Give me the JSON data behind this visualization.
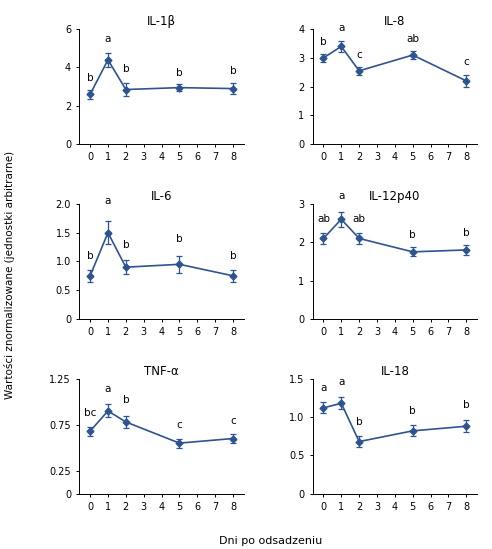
{
  "subplots": [
    {
      "title": "IL-1β",
      "x": [
        0,
        1,
        2,
        5,
        8
      ],
      "y": [
        2.6,
        4.4,
        2.85,
        2.95,
        2.9
      ],
      "yerr": [
        0.25,
        0.35,
        0.35,
        0.2,
        0.3
      ],
      "labels": [
        "b",
        "a",
        "b",
        "b",
        "b"
      ],
      "label_offsets": [
        0.35,
        0.45,
        0.45,
        0.28,
        0.38
      ],
      "ylim": [
        0,
        6
      ],
      "yticks": [
        0,
        2,
        4,
        6
      ],
      "yticklabels": [
        "0",
        "2",
        "4",
        "6"
      ]
    },
    {
      "title": "IL-8",
      "x": [
        0,
        1,
        2,
        5,
        8
      ],
      "y": [
        3.0,
        3.4,
        2.55,
        3.1,
        2.2
      ],
      "yerr": [
        0.15,
        0.2,
        0.15,
        0.15,
        0.2
      ],
      "labels": [
        "b",
        "a",
        "c",
        "ab",
        "c"
      ],
      "label_offsets": [
        0.22,
        0.28,
        0.22,
        0.22,
        0.28
      ],
      "ylim": [
        0,
        4
      ],
      "yticks": [
        0,
        1,
        2,
        3,
        4
      ],
      "yticklabels": [
        "0",
        "1",
        "2",
        "3",
        "4"
      ]
    },
    {
      "title": "IL-6",
      "x": [
        0,
        1,
        2,
        5,
        8
      ],
      "y": [
        0.75,
        1.5,
        0.9,
        0.95,
        0.75
      ],
      "yerr": [
        0.1,
        0.2,
        0.12,
        0.15,
        0.1
      ],
      "labels": [
        "b",
        "a",
        "b",
        "b",
        "b"
      ],
      "label_offsets": [
        0.16,
        0.26,
        0.18,
        0.2,
        0.16
      ],
      "ylim": [
        0,
        2.0
      ],
      "yticks": [
        0,
        0.5,
        1.0,
        1.5,
        2.0
      ],
      "yticklabels": [
        "0",
        "0.5",
        "1.0",
        "1.5",
        "2.0"
      ]
    },
    {
      "title": "IL-12p40",
      "x": [
        0,
        1,
        2,
        5,
        8
      ],
      "y": [
        2.1,
        2.6,
        2.1,
        1.75,
        1.8
      ],
      "yerr": [
        0.15,
        0.2,
        0.15,
        0.12,
        0.12
      ],
      "labels": [
        "ab",
        "a",
        "ab",
        "b",
        "b"
      ],
      "label_offsets": [
        0.22,
        0.28,
        0.22,
        0.18,
        0.18
      ],
      "ylim": [
        0,
        3
      ],
      "yticks": [
        0,
        1,
        2,
        3
      ],
      "yticklabels": [
        "0",
        "1",
        "2",
        "3"
      ]
    },
    {
      "title": "TNF-α",
      "x": [
        0,
        1,
        2,
        5,
        8
      ],
      "y": [
        0.68,
        0.9,
        0.78,
        0.55,
        0.6
      ],
      "yerr": [
        0.05,
        0.07,
        0.07,
        0.05,
        0.05
      ],
      "labels": [
        "bc",
        "a",
        "b",
        "c",
        "c"
      ],
      "label_offsets": [
        0.09,
        0.11,
        0.11,
        0.09,
        0.09
      ],
      "ylim": [
        0,
        1.25
      ],
      "yticks": [
        0,
        0.25,
        0.75,
        1.25
      ],
      "yticklabels": [
        "0",
        "0.25",
        "0.75",
        "1.25"
      ]
    },
    {
      "title": "IL-18",
      "x": [
        0,
        1,
        2,
        5,
        8
      ],
      "y": [
        1.12,
        1.18,
        0.68,
        0.82,
        0.88
      ],
      "yerr": [
        0.07,
        0.08,
        0.07,
        0.07,
        0.08
      ],
      "labels": [
        "a",
        "a",
        "b",
        "b",
        "b"
      ],
      "label_offsets": [
        0.12,
        0.13,
        0.12,
        0.12,
        0.13
      ],
      "ylim": [
        0,
        1.5
      ],
      "yticks": [
        0,
        0.5,
        1.0,
        1.5
      ],
      "yticklabels": [
        "0",
        "0.5",
        "1.0",
        "1.5"
      ]
    }
  ],
  "line_color": "#2e5490",
  "ylabel": "Wartości znormalizowane (jednostki arbitrarne)",
  "xlabel": "Dni po odsadzeniu",
  "xticks": [
    0,
    1,
    2,
    3,
    4,
    5,
    6,
    7,
    8
  ],
  "label_fontsize": 7.5,
  "tick_fontsize": 7,
  "title_fontsize": 8.5,
  "annot_fontsize": 7.5
}
